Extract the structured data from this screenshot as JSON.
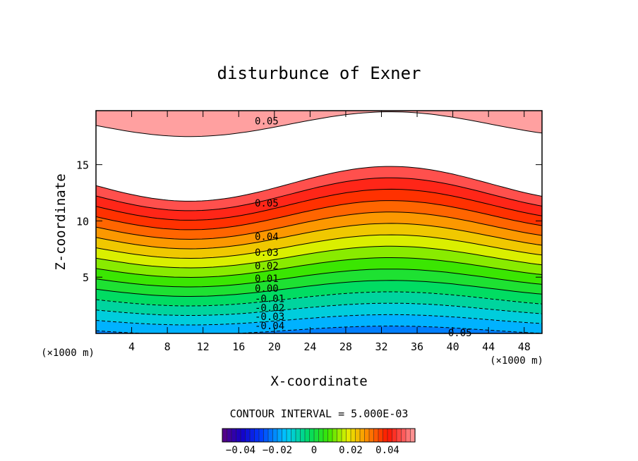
{
  "chart_data": {
    "type": "contour",
    "title": "disturbunce of Exner",
    "xlabel": "X-coordinate",
    "ylabel": "Z-coordinate",
    "x_unit_label": "(×1000 m)",
    "xlim": [
      0,
      50
    ],
    "ylim": [
      0,
      19.8
    ],
    "x_ticks": [
      4,
      8,
      12,
      16,
      20,
      24,
      28,
      32,
      36,
      40,
      44,
      48
    ],
    "y_ticks": [
      5,
      10,
      15
    ],
    "contour_interval_text": "CONTOUR INTERVAL = 5.000E-03",
    "levels_range": [
      -0.05,
      0.055
    ],
    "contour_labels": [
      {
        "text": "0.05",
        "x": 17.8,
        "y": 18.9
      },
      {
        "text": "0.05",
        "x": 17.8,
        "y": 11.6
      },
      {
        "text": "0.04",
        "x": 17.8,
        "y": 8.6
      },
      {
        "text": "0.03",
        "x": 17.8,
        "y": 7.2
      },
      {
        "text": "0.02",
        "x": 17.8,
        "y": 6.0
      },
      {
        "text": "0.01",
        "x": 17.8,
        "y": 4.9
      },
      {
        "text": "0.00",
        "x": 17.8,
        "y": 4.0
      },
      {
        "text": "-0.01",
        "x": 17.8,
        "y": 3.1
      },
      {
        "text": "-0.02",
        "x": 17.8,
        "y": 2.3
      },
      {
        "text": "-0.03",
        "x": 17.8,
        "y": 1.5
      },
      {
        "text": "-0.04",
        "x": 17.8,
        "y": 0.7
      },
      {
        "text": "-0.05",
        "x": 38.8,
        "y": 0.05
      }
    ],
    "colorbar": {
      "range": [
        -0.05,
        0.055
      ],
      "ticks": [
        -0.04,
        -0.02,
        0,
        0.02,
        0.04
      ],
      "tick_labels": [
        "−0.04",
        "−0.02",
        "0",
        "0.02",
        "0.04"
      ]
    }
  }
}
